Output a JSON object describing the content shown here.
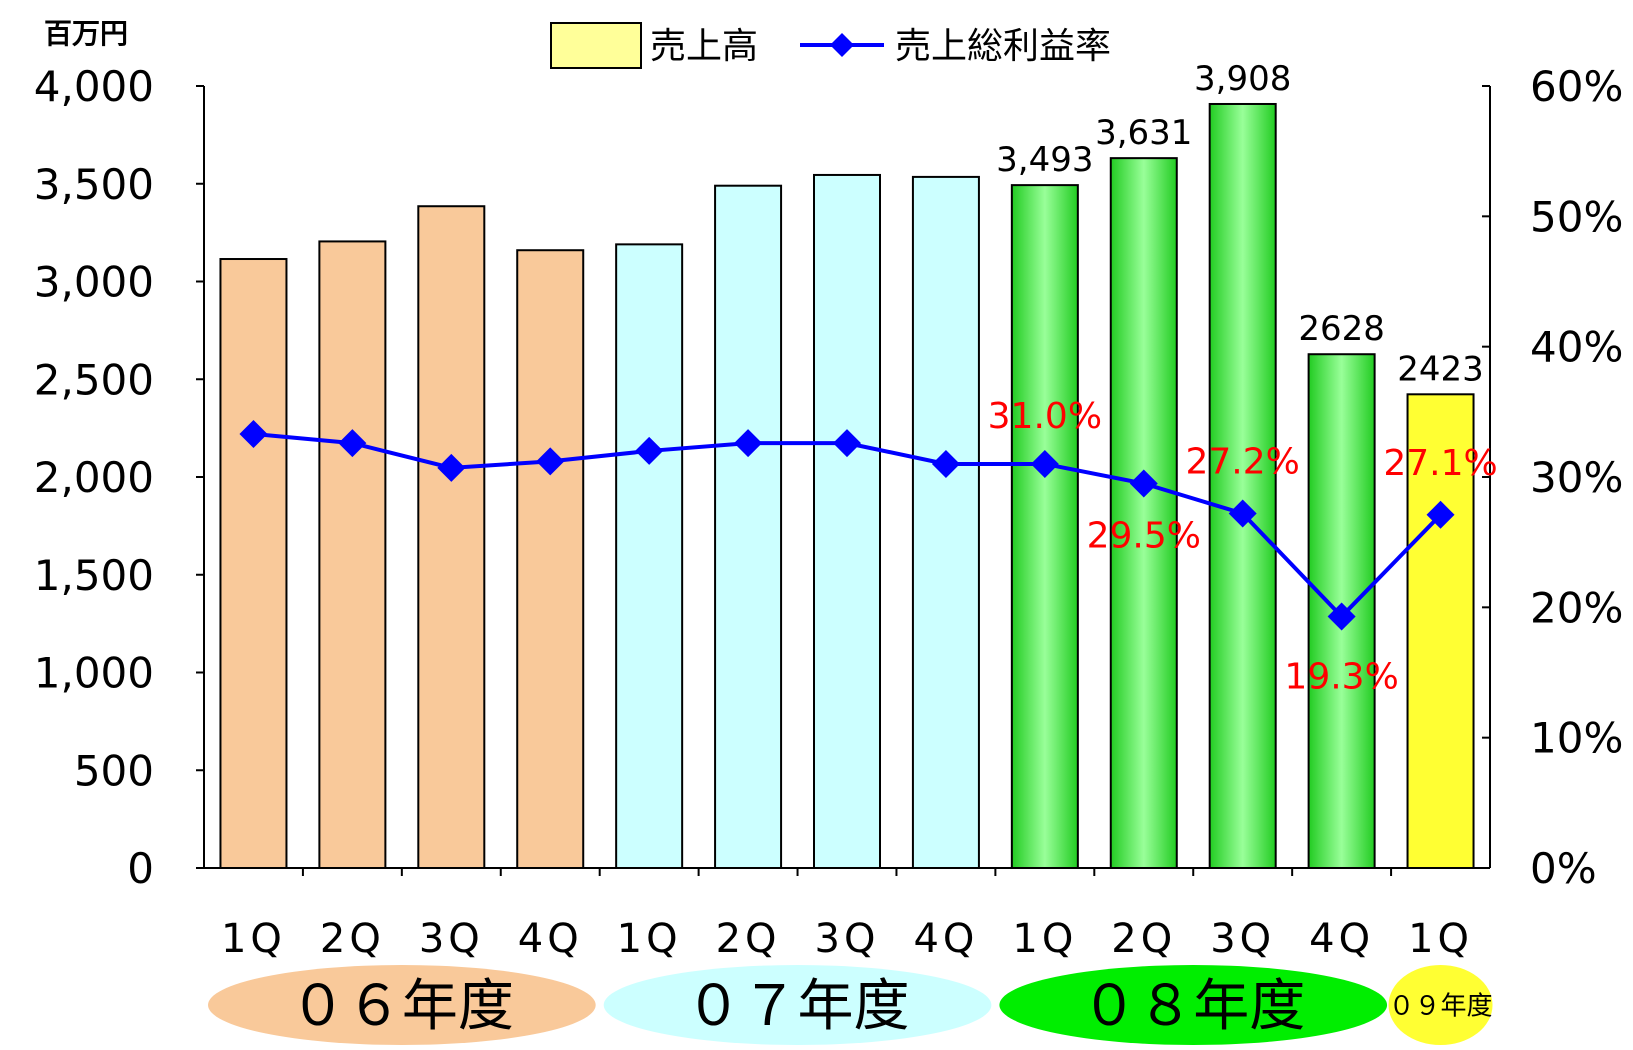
{
  "chart_data": {
    "type": "bar",
    "title": "",
    "y_unit_label": "百万円",
    "categories": [
      "1Q",
      "2Q",
      "3Q",
      "4Q",
      "1Q",
      "2Q",
      "3Q",
      "4Q",
      "1Q",
      "2Q",
      "3Q",
      "4Q",
      "1Q"
    ],
    "category_labels": [
      "1Q",
      "2Q",
      "3Q",
      "4Q",
      "1Q",
      "2Q",
      "3Q",
      "4Q",
      "1Q",
      "2Q",
      "3Q",
      "4Q",
      "1Q"
    ],
    "fiscal_years": [
      {
        "label": "０６年度",
        "quarters": 4,
        "color": "#f9c99a"
      },
      {
        "label": "０７年度",
        "quarters": 4,
        "color": "#ccffff"
      },
      {
        "label": "０８年度",
        "quarters": 4,
        "color": "#00ee00"
      },
      {
        "label": "０９年度",
        "quarters": 1,
        "color": "#ffff33"
      }
    ],
    "series": [
      {
        "name": "売上高",
        "axis": "left",
        "kind": "bar",
        "values": [
          3115,
          3205,
          3385,
          3160,
          3190,
          3490,
          3545,
          3535,
          3493,
          3631,
          3908,
          2628,
          2423
        ],
        "data_labels": [
          "",
          "",
          "",
          "",
          "",
          "",
          "",
          "",
          "3,493",
          "3,631",
          "3,908",
          "2628",
          "2423"
        ],
        "colors": [
          "#f9c99a",
          "#f9c99a",
          "#f9c99a",
          "#f9c99a",
          "#ccffff",
          "#ccffff",
          "#ccffff",
          "#ccffff",
          "#5ee65e",
          "#5ee65e",
          "#5ee65e",
          "#5ee65e",
          "#ffff33"
        ],
        "legend_color": "#ffff99"
      },
      {
        "name": "売上総利益率",
        "axis": "right",
        "kind": "line",
        "color": "#0000ff",
        "values": [
          33.3,
          32.6,
          30.7,
          31.2,
          32.0,
          32.6,
          32.6,
          31.0,
          31.0,
          29.5,
          27.2,
          19.3,
          27.1
        ],
        "data_labels": [
          "",
          "",
          "",
          "",
          "",
          "",
          "",
          "",
          "31.0%",
          "29.5%",
          "27.2%",
          "19.3%",
          "27.1%"
        ],
        "label_color": "#ff0000"
      }
    ],
    "y_left": {
      "min": 0,
      "max": 4000,
      "step": 500,
      "tick_labels": [
        "0",
        "500",
        "1,000",
        "1,500",
        "2,000",
        "2,500",
        "3,000",
        "3,500",
        "4,000"
      ]
    },
    "y_right": {
      "min": 0,
      "max": 60,
      "step": 10,
      "tick_labels": [
        "0%",
        "10%",
        "20%",
        "30%",
        "40%",
        "50%",
        "60%"
      ]
    },
    "legend": {
      "position": "top-center"
    },
    "grid": false
  }
}
